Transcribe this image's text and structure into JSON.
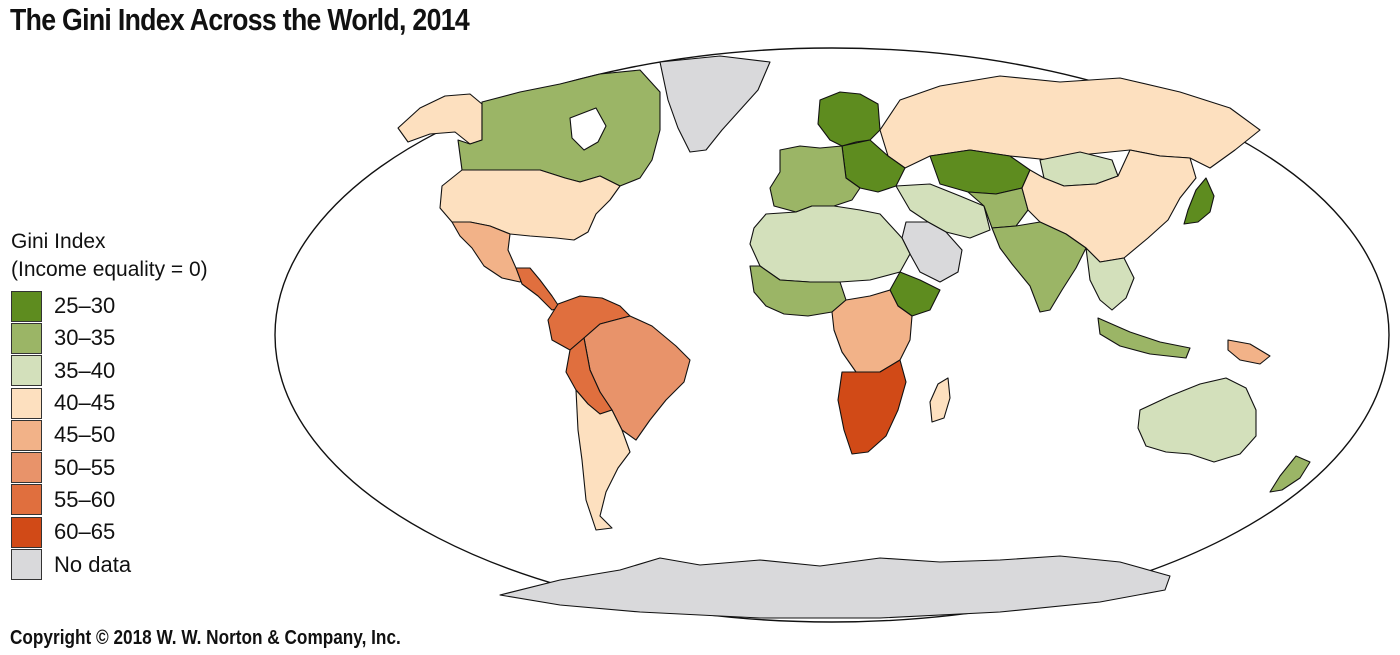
{
  "title": "The Gini Index Across the World, 2014",
  "legend": {
    "title_line1": "Gini Index",
    "title_line2": "(Income equality = 0)",
    "items": [
      {
        "label": "25–30",
        "color": "#5e8c1f"
      },
      {
        "label": "30–35",
        "color": "#9bb566"
      },
      {
        "label": "35–40",
        "color": "#d3e0bb"
      },
      {
        "label": "40–45",
        "color": "#fde0bf"
      },
      {
        "label": "45–50",
        "color": "#f2b288"
      },
      {
        "label": "50–55",
        "color": "#e8936a"
      },
      {
        "label": "55–60",
        "color": "#e06f3e"
      },
      {
        "label": "60–65",
        "color": "#d14a17"
      },
      {
        "label": "No data",
        "color": "#d9d9db"
      }
    ]
  },
  "map": {
    "ocean_color": "#ffffff",
    "regions": [
      {
        "name": "Canada",
        "bin": "30–35"
      },
      {
        "name": "Alaska",
        "bin": "40–45"
      },
      {
        "name": "United States",
        "bin": "40–45"
      },
      {
        "name": "Greenland",
        "bin": "No data"
      },
      {
        "name": "Mexico",
        "bin": "45–50"
      },
      {
        "name": "Central America",
        "bin": "55–60"
      },
      {
        "name": "Colombia / Venezuela",
        "bin": "55–60"
      },
      {
        "name": "Brazil",
        "bin": "50–55"
      },
      {
        "name": "Bolivia / Paraguay",
        "bin": "55–60"
      },
      {
        "name": "Argentina / Chile",
        "bin": "40–45"
      },
      {
        "name": "Russia",
        "bin": "40–45"
      },
      {
        "name": "Northern Europe",
        "bin": "25–30"
      },
      {
        "name": "Western Europe",
        "bin": "30–35"
      },
      {
        "name": "Kazakhstan",
        "bin": "25–30"
      },
      {
        "name": "China",
        "bin": "40–45"
      },
      {
        "name": "Mongolia",
        "bin": "35–40"
      },
      {
        "name": "India",
        "bin": "30–35"
      },
      {
        "name": "Saudi Arabia",
        "bin": "No data"
      },
      {
        "name": "Iran",
        "bin": "35–40"
      },
      {
        "name": "Japan",
        "bin": "25–30"
      },
      {
        "name": "North Africa",
        "bin": "35–40"
      },
      {
        "name": "West Africa",
        "bin": "30–35"
      },
      {
        "name": "Ethiopia",
        "bin": "25–30"
      },
      {
        "name": "Central Africa",
        "bin": "45–50"
      },
      {
        "name": "Southern Africa",
        "bin": "60–65"
      },
      {
        "name": "Madagascar",
        "bin": "40–45"
      },
      {
        "name": "Australia",
        "bin": "35–40"
      },
      {
        "name": "New Zealand",
        "bin": "30–35"
      },
      {
        "name": "Southeast Asia",
        "bin": "35–40"
      },
      {
        "name": "Antarctica",
        "bin": "No data"
      }
    ]
  },
  "copyright": "Copyright © 2018 W. W. Norton & Company, Inc."
}
